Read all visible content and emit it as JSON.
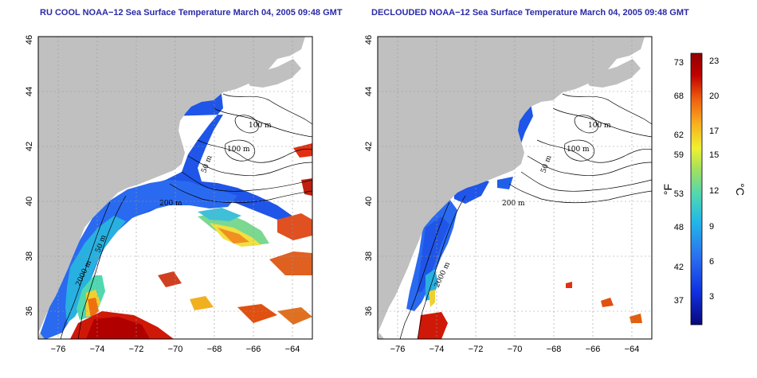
{
  "panels": [
    {
      "title": "RU COOL NOAA−12 Sea Surface Temperature March 04, 2005 09:48 GMT",
      "contour_labels": [
        "100 m",
        "100 m",
        "50 m",
        "200 m",
        "50 m",
        "2000 m"
      ]
    },
    {
      "title": "DECLOUDED NOAA−12 Sea Surface Temperature March 04, 2005 09:48 GMT",
      "contour_labels": [
        "100 m",
        "100 m",
        "50 m",
        "200 m",
        "2000 m"
      ]
    }
  ],
  "axes": {
    "x_ticks": [
      "−76",
      "−74",
      "−72",
      "−70",
      "−68",
      "−66",
      "−64"
    ],
    "y_ticks": [
      "36",
      "38",
      "40",
      "42",
      "44",
      "46"
    ],
    "x_range": [
      -77,
      -63
    ],
    "y_range": [
      35,
      46
    ]
  },
  "colorbar": {
    "fahrenheit_ticks": [
      "73",
      "68",
      "62",
      "59",
      "53",
      "48",
      "42",
      "37"
    ],
    "celsius_ticks": [
      "23",
      "20",
      "17",
      "15",
      "12",
      "9",
      "6",
      "3"
    ],
    "fahrenheit_label": "°F",
    "celsius_label": "°C",
    "colors": [
      "#08087a",
      "#1030e0",
      "#2a70f0",
      "#22b8e8",
      "#50d8b0",
      "#a0e060",
      "#f0f030",
      "#f8b020",
      "#f06010",
      "#c00000",
      "#900000"
    ]
  },
  "colors": {
    "land": "#c0c0c0",
    "title": "#2a2aa8",
    "grid": "#999999"
  }
}
